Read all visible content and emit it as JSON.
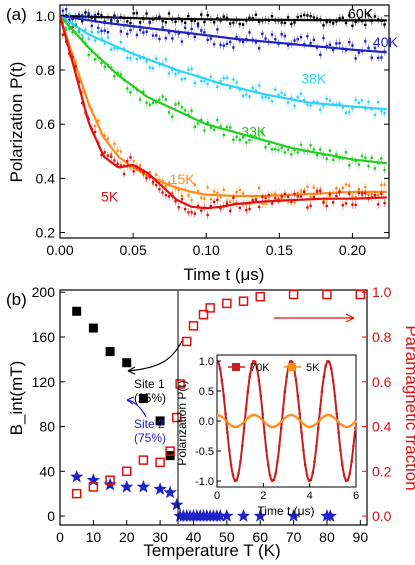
{
  "chart_data": [
    {
      "panel_label": "(a)",
      "type": "line",
      "xlabel": "Time t (μs)",
      "ylabel": "Polarization P(t)",
      "xlim": [
        0,
        0.225
      ],
      "ylim": [
        0.18,
        1.04
      ],
      "xticks": [
        "0.00",
        "0.05",
        "0.10",
        "0.15",
        "0.20"
      ],
      "yticks": [
        "0.2",
        "0.4",
        "0.6",
        "0.8",
        "1.0"
      ],
      "series": [
        {
          "name": "60K",
          "color": "#000000",
          "x": [
            0,
            0.03,
            0.06,
            0.09,
            0.12,
            0.15,
            0.18,
            0.2,
            0.225
          ],
          "y": [
            1.0,
            0.995,
            0.99,
            0.988,
            0.986,
            0.985,
            0.984,
            0.983,
            0.983
          ]
        },
        {
          "name": "40K",
          "color": "#1f22c8",
          "x": [
            0,
            0.03,
            0.06,
            0.09,
            0.12,
            0.15,
            0.18,
            0.2,
            0.225
          ],
          "y": [
            1.0,
            0.975,
            0.955,
            0.935,
            0.915,
            0.9,
            0.885,
            0.875,
            0.865
          ]
        },
        {
          "name": "38K",
          "color": "#2fd3f5",
          "x": [
            0,
            0.02,
            0.05,
            0.08,
            0.11,
            0.14,
            0.17,
            0.2,
            0.225
          ],
          "y": [
            1.0,
            0.93,
            0.86,
            0.8,
            0.75,
            0.71,
            0.68,
            0.665,
            0.655
          ]
        },
        {
          "name": "33K",
          "color": "#22cc22",
          "x": [
            0,
            0.02,
            0.04,
            0.06,
            0.08,
            0.1,
            0.12,
            0.14,
            0.16,
            0.18,
            0.2,
            0.225
          ],
          "y": [
            1.0,
            0.88,
            0.78,
            0.7,
            0.65,
            0.6,
            0.57,
            0.54,
            0.51,
            0.49,
            0.47,
            0.455
          ]
        },
        {
          "name": "15K",
          "color": "#ff8c1a",
          "x": [
            0,
            0.01,
            0.02,
            0.03,
            0.04,
            0.05,
            0.06,
            0.07,
            0.08,
            0.09,
            0.1,
            0.12,
            0.14,
            0.16,
            0.18,
            0.2,
            0.225
          ],
          "y": [
            1.0,
            0.83,
            0.67,
            0.55,
            0.48,
            0.44,
            0.41,
            0.385,
            0.365,
            0.35,
            0.34,
            0.335,
            0.335,
            0.34,
            0.345,
            0.35,
            0.35
          ]
        },
        {
          "name": "5K",
          "color": "#e01010",
          "x": [
            0,
            0.01,
            0.02,
            0.03,
            0.04,
            0.05,
            0.06,
            0.07,
            0.08,
            0.09,
            0.1,
            0.11,
            0.12,
            0.14,
            0.16,
            0.18,
            0.2,
            0.225
          ],
          "y": [
            1.0,
            0.8,
            0.6,
            0.48,
            0.44,
            0.45,
            0.42,
            0.37,
            0.32,
            0.295,
            0.29,
            0.295,
            0.305,
            0.315,
            0.32,
            0.325,
            0.325,
            0.33
          ]
        }
      ]
    },
    {
      "panel_label": "(b)",
      "type": "scatter",
      "xlabel": "Temperature T (K)",
      "ylabel_left": "B_int(mT)",
      "ylabel_right": "Paramagnetic fraction",
      "xlim": [
        0,
        92
      ],
      "ylim_left": [
        -8,
        202
      ],
      "ylim_right": [
        -0.04,
        1.01
      ],
      "xticks": [
        "0",
        "10",
        "20",
        "30",
        "40",
        "50",
        "60",
        "70",
        "80",
        "90"
      ],
      "yticks_left": [
        "0",
        "40",
        "80",
        "120",
        "160",
        "200"
      ],
      "yticks_right": [
        "0.0",
        "0.2",
        "0.4",
        "0.6",
        "0.8",
        "1.0"
      ],
      "series": [
        {
          "name": "Site 1",
          "axis": "left",
          "color": "#000000",
          "marker": "filled-square",
          "x": [
            5,
            10,
            15,
            20,
            25,
            30,
            33
          ],
          "y": [
            183,
            168,
            147,
            137,
            105,
            85,
            54
          ]
        },
        {
          "name": "Site 2",
          "axis": "left",
          "color": "#1f22c8",
          "marker": "filled-star",
          "x": [
            5,
            10,
            15,
            20,
            25,
            30,
            33,
            35,
            36,
            37,
            38,
            39,
            40,
            41,
            42,
            43,
            44,
            45,
            46,
            47,
            48,
            50,
            55,
            60,
            70,
            80,
            81
          ],
          "y": [
            35,
            32,
            28,
            26,
            26,
            24,
            21,
            10,
            0,
            0,
            0,
            0,
            0,
            0,
            0,
            0,
            0,
            0,
            0,
            0,
            0,
            0,
            0,
            0,
            0,
            0,
            0
          ]
        },
        {
          "name": "Paramagnetic fraction",
          "axis": "right",
          "color": "#e01010",
          "marker": "open-square",
          "x": [
            5,
            10,
            15,
            20,
            25,
            30,
            33,
            35,
            36,
            38,
            40,
            43,
            45,
            50,
            55,
            60,
            70,
            80,
            90
          ],
          "y": [
            0.1,
            0.13,
            0.16,
            0.2,
            0.25,
            0.24,
            0.29,
            0.44,
            0.59,
            0.78,
            0.85,
            0.9,
            0.93,
            0.95,
            0.96,
            0.98,
            0.99,
            0.99,
            0.99
          ]
        }
      ],
      "annotations": [
        {
          "text": "Site 1",
          "sub": "(25%)"
        },
        {
          "text": "Site 2",
          "sub": "(75%)"
        }
      ],
      "inset": {
        "type": "line",
        "xlabel": "Time t (μs)",
        "ylabel": "Polarization P(t)",
        "xlim": [
          0,
          6
        ],
        "ylim": [
          -1.1,
          1.1
        ],
        "xticks": [
          "0",
          "2",
          "4",
          "6"
        ],
        "yticks": [
          "-1.0",
          "-0.5",
          "0.0",
          "0.5",
          "1.0"
        ],
        "legend": [
          {
            "name": "70K",
            "color": "#c81e1e"
          },
          {
            "name": "5K",
            "color": "#ff8c1a"
          }
        ],
        "series": [
          {
            "name": "70K",
            "color": "#c81e1e",
            "amplitude": 1.0,
            "period": 1.6
          },
          {
            "name": "5K",
            "color": "#ff8c1a",
            "amplitude": 0.1,
            "period": 1.6
          }
        ]
      }
    }
  ]
}
